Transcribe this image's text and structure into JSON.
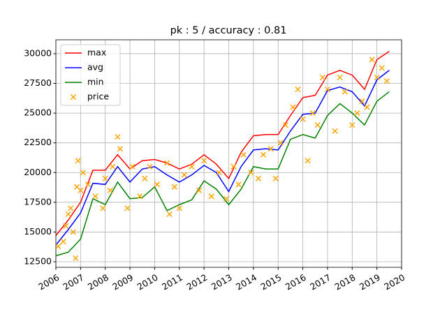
{
  "chart_data": {
    "type": "line",
    "title": "pk : 5 / accuracy : 0.81",
    "xlim": [
      2006,
      2020
    ],
    "xticks": [
      2006,
      2007,
      2008,
      2009,
      2010,
      2011,
      2012,
      2013,
      2014,
      2015,
      2016,
      2017,
      2018,
      2019,
      2020
    ],
    "ylim": [
      12030,
      31170
    ],
    "yticks": [
      12500,
      15000,
      17500,
      20000,
      22500,
      25000,
      27500,
      30000
    ],
    "grid": true,
    "legend": "upper-left",
    "x": [
      2006,
      2006.5,
      2007,
      2007.5,
      2008,
      2008.5,
      2009,
      2009.5,
      2010,
      2010.5,
      2011,
      2011.5,
      2012,
      2012.5,
      2013,
      2013.5,
      2014,
      2014.5,
      2015,
      2015.5,
      2016,
      2016.5,
      2017,
      2017.5,
      2018,
      2018.5,
      2019,
      2019.5
    ],
    "series": [
      {
        "name": "max",
        "type": "line",
        "color": "#ff0000",
        "values": [
          14700,
          16000,
          17500,
          20200,
          20200,
          21500,
          20300,
          21000,
          21100,
          20800,
          20300,
          20700,
          21500,
          20700,
          19500,
          21700,
          23100,
          23200,
          23200,
          24800,
          26300,
          26500,
          28200,
          28600,
          28200,
          27000,
          29500,
          30200
        ]
      },
      {
        "name": "avg",
        "type": "line",
        "color": "#0000ff",
        "values": [
          13900,
          15200,
          16600,
          19100,
          19000,
          20500,
          19200,
          20300,
          20500,
          19800,
          19200,
          19800,
          20600,
          20000,
          18400,
          20500,
          21900,
          22000,
          21900,
          23500,
          24900,
          25000,
          26900,
          27200,
          26800,
          25600,
          27800,
          28600
        ]
      },
      {
        "name": "min",
        "type": "line",
        "color": "#008000",
        "values": [
          13000,
          13300,
          14400,
          17800,
          17300,
          19200,
          17800,
          17900,
          18800,
          16800,
          17300,
          17700,
          19300,
          18600,
          17300,
          18600,
          20500,
          20300,
          20300,
          22800,
          23200,
          22900,
          24800,
          25800,
          25000,
          24000,
          26000,
          26800
        ]
      },
      {
        "name": "price",
        "type": "scatter",
        "color": "#ffa500",
        "x": [
          2006.1,
          2006.3,
          2006.4,
          2006.5,
          2006.6,
          2006.7,
          2006.8,
          2006.85,
          2006.9,
          2007.0,
          2007.1,
          2007.3,
          2007.6,
          2007.9,
          2008.0,
          2008.2,
          2008.3,
          2008.5,
          2008.6,
          2008.9,
          2009.1,
          2009.4,
          2009.6,
          2009.8,
          2010.1,
          2010.5,
          2010.6,
          2010.8,
          2011.0,
          2011.2,
          2011.5,
          2011.8,
          2012.0,
          2012.3,
          2012.6,
          2012.9,
          2013.2,
          2013.4,
          2013.6,
          2013.9,
          2014.2,
          2014.4,
          2014.7,
          2014.9,
          2015.1,
          2015.3,
          2015.6,
          2015.8,
          2016.0,
          2016.2,
          2016.4,
          2016.6,
          2016.8,
          2017.0,
          2017.3,
          2017.5,
          2017.7,
          2018.0,
          2018.2,
          2018.4,
          2018.6,
          2018.8,
          2019.0,
          2019.2,
          2019.4
        ],
        "values": [
          13800,
          14200,
          15500,
          16500,
          17000,
          15000,
          12800,
          18800,
          21000,
          18500,
          20000,
          19000,
          18000,
          17000,
          19500,
          18500,
          20500,
          23000,
          22000,
          17000,
          20500,
          18000,
          19500,
          20500,
          19000,
          20800,
          16500,
          18800,
          17000,
          19800,
          20500,
          18500,
          21000,
          18000,
          20000,
          17800,
          20500,
          19000,
          21500,
          20000,
          19500,
          21500,
          22000,
          19500,
          22500,
          24000,
          25500,
          27000,
          24500,
          21000,
          25000,
          24000,
          28000,
          27000,
          23500,
          28000,
          26800,
          24000,
          25000,
          26000,
          25500,
          29500,
          28000,
          28800,
          27700
        ]
      }
    ]
  }
}
